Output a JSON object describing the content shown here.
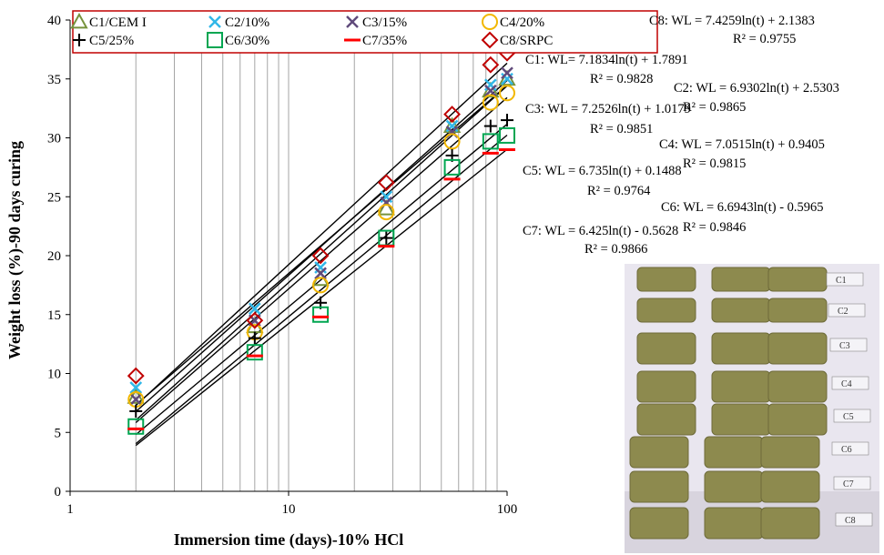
{
  "chart_data": {
    "type": "scatter",
    "xscale": "log",
    "xlabel": "Immersion time (days)-10% HCl",
    "ylabel": "Weight loss (%)-90 days curing",
    "xlim": [
      1,
      100
    ],
    "ylim": [
      0,
      40
    ],
    "xticks": [
      "1",
      "10",
      "100"
    ],
    "yticks": [
      "0",
      "5",
      "10",
      "15",
      "20",
      "25",
      "30",
      "35",
      "40"
    ],
    "grid": "vertical log gridlines",
    "legend_position": "top",
    "x": [
      2,
      7,
      14,
      28,
      56,
      84,
      100
    ],
    "series": [
      {
        "name": "C1/CEM I",
        "marker": "triangle",
        "color": "#76923c",
        "values": [
          8.0,
          14.0,
          18.0,
          24.0,
          31.0,
          34.0,
          35.0
        ]
      },
      {
        "name": "C2/10%",
        "marker": "x",
        "color": "#31b7e8",
        "values": [
          8.8,
          15.5,
          19.0,
          25.0,
          31.0,
          34.5,
          35.0
        ]
      },
      {
        "name": "C3/15%",
        "marker": "x",
        "color": "#604a7b",
        "values": [
          7.8,
          14.5,
          18.5,
          24.5,
          30.5,
          34.0,
          35.5
        ]
      },
      {
        "name": "C4/20%",
        "marker": "circle",
        "color": "#f2b701",
        "values": [
          7.8,
          13.5,
          17.5,
          23.7,
          29.7,
          33.0,
          33.8
        ]
      },
      {
        "name": "C5/25%",
        "marker": "plus",
        "color": "#000000",
        "values": [
          6.8,
          13.0,
          16.0,
          21.5,
          28.5,
          31.0,
          31.5
        ]
      },
      {
        "name": "C6/30%",
        "marker": "square",
        "color": "#00a651",
        "values": [
          5.5,
          11.8,
          15.0,
          21.5,
          27.5,
          29.7,
          30.2
        ]
      },
      {
        "name": "C7/35%",
        "marker": "dash",
        "color": "#ff0000",
        "values": [
          5.3,
          11.5,
          14.8,
          20.8,
          26.5,
          28.7,
          29.0
        ]
      },
      {
        "name": "C8/SRPC",
        "marker": "diamond",
        "color": "#c00000",
        "values": [
          9.8,
          14.5,
          20.0,
          26.2,
          32.0,
          36.2,
          37.2
        ]
      }
    ],
    "trendlines": [
      {
        "label": "C8",
        "slope": 7.4259,
        "intercept": 2.1383
      },
      {
        "label": "C1",
        "slope": 7.1834,
        "intercept": 1.7891
      },
      {
        "label": "C2",
        "slope": 6.9302,
        "intercept": 2.5303
      },
      {
        "label": "C3",
        "slope": 7.2526,
        "intercept": 1.0179
      },
      {
        "label": "C4",
        "slope": 7.0515,
        "intercept": 0.9405
      },
      {
        "label": "C5",
        "slope": 6.735,
        "intercept": 0.1488
      },
      {
        "label": "C6",
        "slope": 6.6943,
        "intercept": -0.5965
      },
      {
        "label": "C7",
        "slope": 6.425,
        "intercept": -0.5628
      }
    ],
    "annotations": [
      {
        "eq": "C8: WL = 7.4259ln(t) + 2.1383",
        "r2": "R² = 0.9755"
      },
      {
        "eq": "C1: WL= 7.1834ln(t) + 1.7891",
        "r2": "R² = 0.9828"
      },
      {
        "eq": "C2: WL = 6.9302ln(t) + 2.5303",
        "r2": "R² = 0.9865"
      },
      {
        "eq": "C3: WL = 7.2526ln(t) + 1.0179",
        "r2": "R² = 0.9851"
      },
      {
        "eq": "C4: WL = 7.0515ln(t) + 0.9405",
        "r2": "R² = 0.9815"
      },
      {
        "eq": "C5: WL = 6.735ln(t) + 0.1488",
        "r2": "R² = 0.9764"
      },
      {
        "eq": "C6: WL = 6.6943ln(t) - 0.5965",
        "r2": "R² = 0.9846"
      },
      {
        "eq": "C7: WL = 6.425ln(t) - 0.5628",
        "r2": "R² = 0.9866"
      }
    ]
  },
  "photo": {
    "labels": [
      "C1",
      "C2",
      "C3",
      "C4",
      "C5",
      "C6",
      "C7",
      "C8"
    ],
    "bg_color": "#e9e6ef",
    "cube_color": "#8d8a4e"
  }
}
